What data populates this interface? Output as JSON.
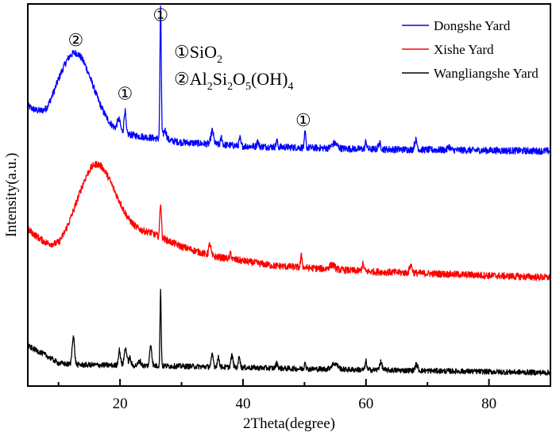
{
  "chart_data": {
    "type": "line",
    "title": "",
    "xlabel": "2Theta(degree)",
    "ylabel": "Intensity(a.u.)",
    "xlim": [
      5,
      90
    ],
    "ylim": [
      0,
      100
    ],
    "xticks": [
      20,
      40,
      60,
      80
    ],
    "xtick_labels": [
      "20",
      "40",
      "60",
      "80"
    ],
    "minor_xticks": [
      10,
      30,
      50,
      70
    ],
    "grid": false,
    "legend_position": "top-right",
    "series": [
      {
        "name": "Dongshe Yard",
        "color": "#0000ff",
        "noise": 0.9,
        "baseline": [
          [
            5,
            73
          ],
          [
            8,
            68.5
          ],
          [
            10,
            69
          ],
          [
            20,
            66
          ],
          [
            25,
            65
          ],
          [
            30,
            63.8
          ],
          [
            40,
            62.8
          ],
          [
            60,
            62
          ],
          [
            90,
            61.5
          ]
        ],
        "peaks": [
          [
            12.8,
            19,
            6.5
          ],
          [
            19.8,
            3,
            0.6
          ],
          [
            20.8,
            6,
            0.35
          ],
          [
            26.6,
            34,
            0.25
          ],
          [
            27.3,
            2.5,
            0.6
          ],
          [
            35,
            3.5,
            0.5
          ],
          [
            36.5,
            2,
            0.3
          ],
          [
            39.5,
            2,
            0.3
          ],
          [
            42.4,
            1.5,
            0.3
          ],
          [
            45.5,
            1.5,
            0.3
          ],
          [
            50.1,
            4,
            0.25
          ],
          [
            54.9,
            1.3,
            1
          ],
          [
            60,
            2,
            0.3
          ],
          [
            62.2,
            1.5,
            0.5
          ],
          [
            68.1,
            2.5,
            0.5
          ],
          [
            73.5,
            1,
            0.4
          ]
        ]
      },
      {
        "name": "Xishe Yard",
        "color": "#ff0000",
        "noise": 0.9,
        "baseline": [
          [
            5,
            41
          ],
          [
            8,
            37
          ],
          [
            10,
            35
          ],
          [
            20,
            40
          ],
          [
            25,
            40
          ],
          [
            30,
            36.5
          ],
          [
            35,
            34
          ],
          [
            45,
            31.5
          ],
          [
            60,
            30
          ],
          [
            90,
            28.4
          ]
        ],
        "peaks": [
          [
            16,
            20,
            7
          ],
          [
            26.6,
            9,
            0.3
          ],
          [
            34.6,
            3,
            0.4
          ],
          [
            38,
            1.5,
            0.3
          ],
          [
            49.5,
            3,
            0.3
          ],
          [
            54.5,
            1.2,
            1
          ],
          [
            59.5,
            1.8,
            0.4
          ],
          [
            67.3,
            2,
            0.5
          ]
        ]
      },
      {
        "name": "Wangliangshe Yard",
        "color": "#000000",
        "noise": 0.7,
        "baseline": [
          [
            5,
            10.5
          ],
          [
            8,
            8
          ],
          [
            10,
            6
          ],
          [
            12,
            5.6
          ],
          [
            20,
            5.4
          ],
          [
            30,
            5.2
          ],
          [
            50,
            4.5
          ],
          [
            70,
            4
          ],
          [
            90,
            3.5
          ]
        ],
        "peaks": [
          [
            12.4,
            7.5,
            0.45
          ],
          [
            19.9,
            4,
            0.4
          ],
          [
            20.9,
            4.5,
            0.5
          ],
          [
            21.6,
            2,
            0.4
          ],
          [
            23.2,
            1.2,
            0.5
          ],
          [
            25,
            5.5,
            0.4
          ],
          [
            26.6,
            19.5,
            0.22
          ],
          [
            35,
            3,
            0.4
          ],
          [
            36,
            2.4,
            0.4
          ],
          [
            38.2,
            3,
            0.4
          ],
          [
            39.4,
            3.2,
            0.3
          ],
          [
            45.5,
            1.3,
            0.4
          ],
          [
            50.1,
            2.2,
            0.25
          ],
          [
            54.9,
            1.5,
            1.2
          ],
          [
            60,
            2.2,
            0.3
          ],
          [
            62.4,
            2,
            0.5
          ],
          [
            68.2,
            1.6,
            0.5
          ]
        ]
      }
    ],
    "annotations": [
      {
        "text": "②",
        "x": 12.8,
        "y": 90.5
      },
      {
        "text": "①",
        "x": 20.8,
        "y": 76.5
      },
      {
        "text": "①",
        "x": 26.6,
        "y": 97
      },
      {
        "text": "①",
        "x": 49.8,
        "y": 69.5
      }
    ],
    "phase_key": [
      {
        "symbol": "①",
        "formula": "SiO",
        "sub": "2"
      },
      {
        "symbol": "②",
        "parts": [
          "Al",
          "2",
          "Si",
          "2",
          "O",
          "5",
          "(OH)",
          "4"
        ]
      }
    ]
  }
}
